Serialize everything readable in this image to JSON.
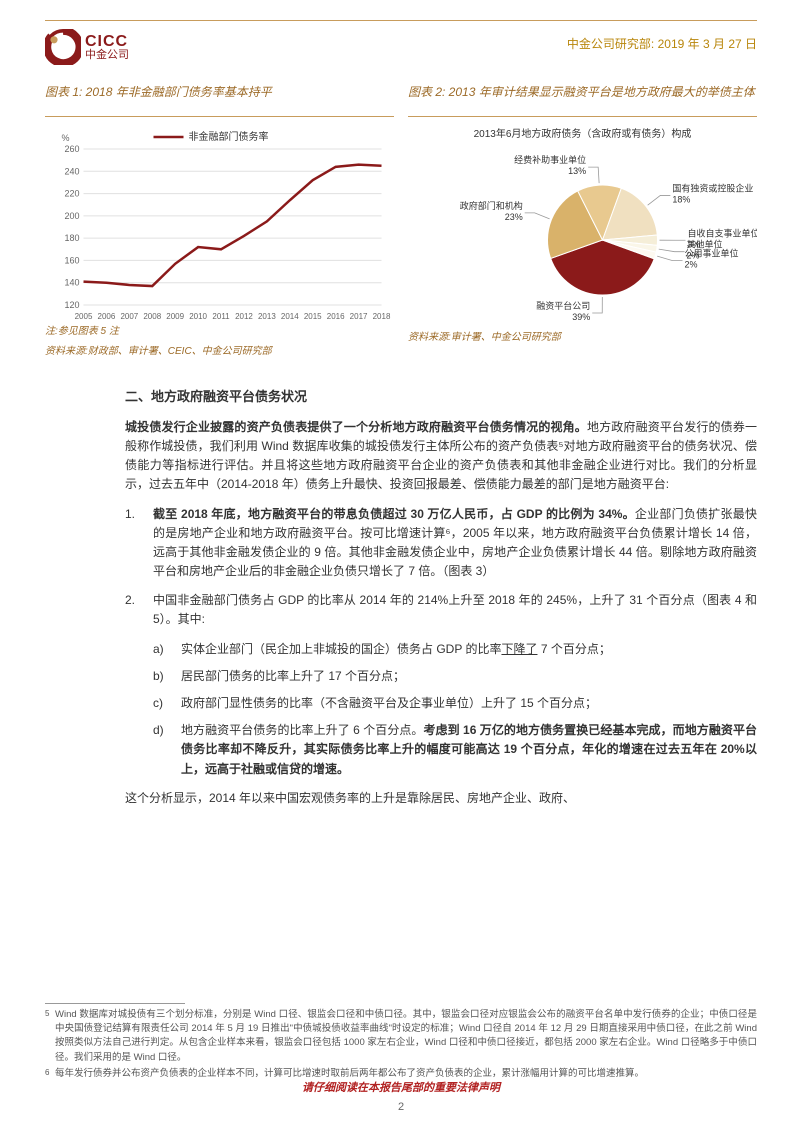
{
  "header": {
    "logo_en": "CICC",
    "logo_cn": "中金公司",
    "dept": "中金公司研究部:",
    "date": "2019 年 3 月 27 日",
    "logo_color": "#8b1a1a"
  },
  "chart1": {
    "title": "图表 1: 2018 年非金融部门债务率基本持平",
    "legend": "非金融部门债务率",
    "ylabel": "%",
    "note": "注:参见图表 5 注",
    "source": "资料来源:财政部、审计署、CEIC、中金公司研究部",
    "type": "line",
    "x": [
      "2005",
      "2006",
      "2007",
      "2008",
      "2009",
      "2010",
      "2011",
      "2012",
      "2013",
      "2014",
      "2015",
      "2016",
      "2017",
      "2018"
    ],
    "y": [
      141,
      140,
      138,
      137,
      157,
      172,
      170,
      182,
      195,
      214,
      232,
      244,
      246,
      245
    ],
    "ylim": [
      120,
      260
    ],
    "ytick_step": 20,
    "line_color": "#8b1a1a",
    "line_width": 2.5,
    "grid_color": "#e0e0e0",
    "tick_fontsize": 9,
    "background_color": "#ffffff"
  },
  "chart2": {
    "title": "图表 2: 2013 年审计结果显示融资平台是地方政府最大的举债主体",
    "subtitle": "2013年6月地方政府债务（含政府或有债务）构成",
    "source": "资料来源:审计署、中金公司研究部",
    "type": "pie",
    "slices": [
      {
        "label": "融资平台公司",
        "value": 39,
        "color": "#8b1a1a"
      },
      {
        "label": "政府部门和机构",
        "value": 23,
        "color": "#d9b26a"
      },
      {
        "label": "经费补助事业单位",
        "value": 13,
        "color": "#e8c98f"
      },
      {
        "label": "国有独资或控股企业",
        "value": 18,
        "color": "#f0e0c0"
      },
      {
        "label": "自收自支事业单位",
        "value": 3,
        "color": "#f5eed8"
      },
      {
        "label": "其他单位",
        "value": 2,
        "color": "#faf6e8"
      },
      {
        "label": "公用事业单位",
        "value": 2,
        "color": "#fdf9f0"
      }
    ],
    "label_fontsize": 9,
    "background_color": "#ffffff"
  },
  "section": {
    "heading": "二、地方政府融资平台债务状况",
    "intro_bold": "城投债发行企业披露的资产负债表提供了一个分析地方政府融资平台债务情况的视角。",
    "intro_rest": "地方政府融资平台发行的债券一般称作城投债，我们利用 Wind 数据库收集的城投债发行主体所公布的资产负债表⁵对地方政府融资平台的债务状况、偿债能力等指标进行评估。并且将这些地方政府融资平台企业的资产负债表和其他非金融企业进行对比。我们的分析显示，过去五年中（2014-2018 年）债务上升最快、投资回报最差、偿债能力最差的部门是地方融资平台:",
    "item1_bold": "截至 2018 年底，地方融资平台的带息负债超过 30 万亿人民币，占 GDP 的比例为 34%。",
    "item1_rest": "企业部门负债扩张最快的是房地产企业和地方政府融资平台。按可比增速计算⁶，2005 年以来，地方政府融资平台负债累计增长 14 倍，远高于其他非金融发债企业的 9 倍。其他非金融发债企业中，房地产企业负债累计增长 44 倍。剔除地方政府融资平台和房地产企业后的非金融企业负债只增长了 7 倍。（图表 3）",
    "item2": "中国非金融部门债务占 GDP 的比率从 2014 年的 214%上升至 2018 年的 245%，上升了 31 个百分点（图表 4 和 5）。其中:",
    "sub_a_pre": "实体企业部门（民企加上非城投的国企）债务占 GDP 的比率",
    "sub_a_ul": "下降了",
    "sub_a_post": " 7 个百分点；",
    "sub_b": "居民部门债务的比率上升了 17 个百分点；",
    "sub_c": "政府部门显性债务的比率（不含融资平台及企事业单位）上升了 15 个百分点；",
    "sub_d_pre": "地方融资平台债务的比率上升了 6 个百分点。",
    "sub_d_bold": "考虑到 16 万亿的地方债务置换已经基本完成，而地方融资平台债务比率却不降反升，其实际债务比率上升的幅度可能高达 19 个百分点，年化的增速在过去五年在 20%以上，远高于社融或信贷的增速。",
    "closing": "这个分析显示，2014 年以来中国宏观债务率的上升是靠除居民、房地产企业、政府、"
  },
  "footnotes": {
    "fn5": "Wind 数据库对城投债有三个划分标准，分别是 Wind 口径、银监会口径和中债口径。其中，银监会口径对应银监会公布的融资平台名单中发行债券的企业；中债口径是中央国债登记结算有限责任公司 2014 年 5 月 19 日推出\"中债城投债收益率曲线\"时设定的标准；Wind 口径自 2014 年 12 月 29 日期直接采用中债口径，在此之前 Wind 按照类似方法自己进行判定。从包含企业样本来看，银监会口径包括 1000 家左右企业，Wind 口径和中债口径接近，都包括 2000 家左右企业。Wind 口径略多于中债口径。我们采用的是 Wind 口径。",
    "fn6": "每年发行债券并公布资产负债表的企业样本不同，计算可比增速时取前后两年都公布了资产负债表的企业，累计涨幅用计算的可比增速推算。"
  },
  "footer": {
    "warning": "请仔细阅读在本报告尾部的重要法律声明",
    "page": "2"
  }
}
